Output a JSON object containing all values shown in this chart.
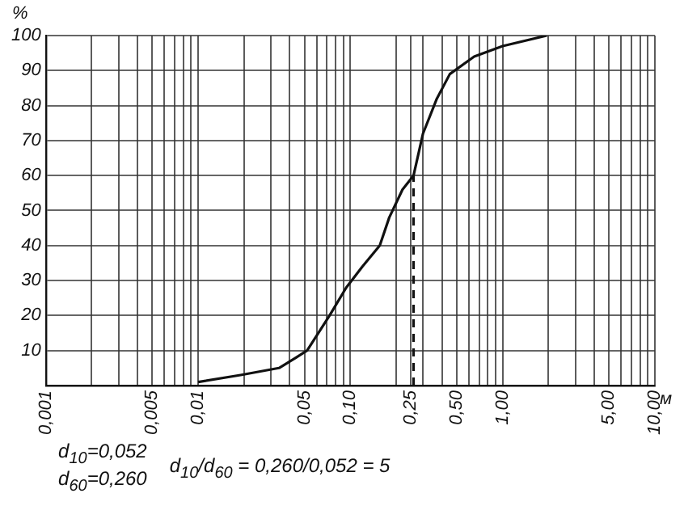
{
  "chart_data": {
    "type": "line",
    "xlabel": "м",
    "ylabel": "%",
    "log": "x",
    "grid": true,
    "legend": false,
    "marker": "none",
    "xlim": [
      0.001,
      10
    ],
    "ylim": [
      0,
      100
    ],
    "xticks": [
      {
        "value": 0.001,
        "label": "0,001"
      },
      {
        "value": 0.002,
        "label": null
      },
      {
        "value": 0.003,
        "label": null
      },
      {
        "value": 0.004,
        "label": null
      },
      {
        "value": 0.005,
        "label": "0,005"
      },
      {
        "value": 0.006,
        "label": null
      },
      {
        "value": 0.007,
        "label": null
      },
      {
        "value": 0.008,
        "label": null
      },
      {
        "value": 0.009,
        "label": null
      },
      {
        "value": 0.01,
        "label": "0,01"
      },
      {
        "value": 0.02,
        "label": null
      },
      {
        "value": 0.03,
        "label": null
      },
      {
        "value": 0.04,
        "label": null
      },
      {
        "value": 0.05,
        "label": "0,05"
      },
      {
        "value": 0.06,
        "label": null
      },
      {
        "value": 0.07,
        "label": null
      },
      {
        "value": 0.08,
        "label": null
      },
      {
        "value": 0.09,
        "label": null
      },
      {
        "value": 0.1,
        "label": "0,10"
      },
      {
        "value": 0.2,
        "label": null
      },
      {
        "value": 0.25,
        "label": "0,25"
      },
      {
        "value": 0.3,
        "label": null
      },
      {
        "value": 0.4,
        "label": null
      },
      {
        "value": 0.5,
        "label": "0,50"
      },
      {
        "value": 0.6,
        "label": null
      },
      {
        "value": 0.7,
        "label": null
      },
      {
        "value": 0.8,
        "label": null
      },
      {
        "value": 0.9,
        "label": null
      },
      {
        "value": 1,
        "label": "1,00"
      },
      {
        "value": 2,
        "label": null
      },
      {
        "value": 3,
        "label": null
      },
      {
        "value": 4,
        "label": null
      },
      {
        "value": 5,
        "label": "5,00"
      },
      {
        "value": 6,
        "label": null
      },
      {
        "value": 7,
        "label": null
      },
      {
        "value": 8,
        "label": null
      },
      {
        "value": 9,
        "label": null
      },
      {
        "value": 10,
        "label": "10,00"
      }
    ],
    "yticks": [
      {
        "value": 0,
        "label": null
      },
      10,
      20,
      30,
      40,
      50,
      60,
      70,
      80,
      90,
      100
    ],
    "series": [
      {
        "color": "#111111",
        "x": [
          0.01,
          0.019,
          0.034,
          0.044,
          0.052,
          0.073,
          0.094,
          0.12,
          0.156,
          0.18,
          0.22,
          0.26,
          0.3,
          0.37,
          0.45,
          0.65,
          1.0,
          1.95
        ],
        "values": [
          1,
          3,
          5,
          8,
          10,
          20,
          28,
          34,
          40,
          48,
          56,
          60,
          72,
          82,
          89,
          94,
          97,
          100
        ]
      },
      {
        "color": "#111111",
        "line_style": "dashed",
        "x": [
          0.26,
          0.26
        ],
        "values": [
          0,
          60
        ]
      }
    ],
    "annotations": [
      "d$_{10}$=0,052",
      "d$_{60}$=0,260",
      "d$_{10}$/d$_{60}$ = 0,260/0,052 = 5"
    ]
  }
}
